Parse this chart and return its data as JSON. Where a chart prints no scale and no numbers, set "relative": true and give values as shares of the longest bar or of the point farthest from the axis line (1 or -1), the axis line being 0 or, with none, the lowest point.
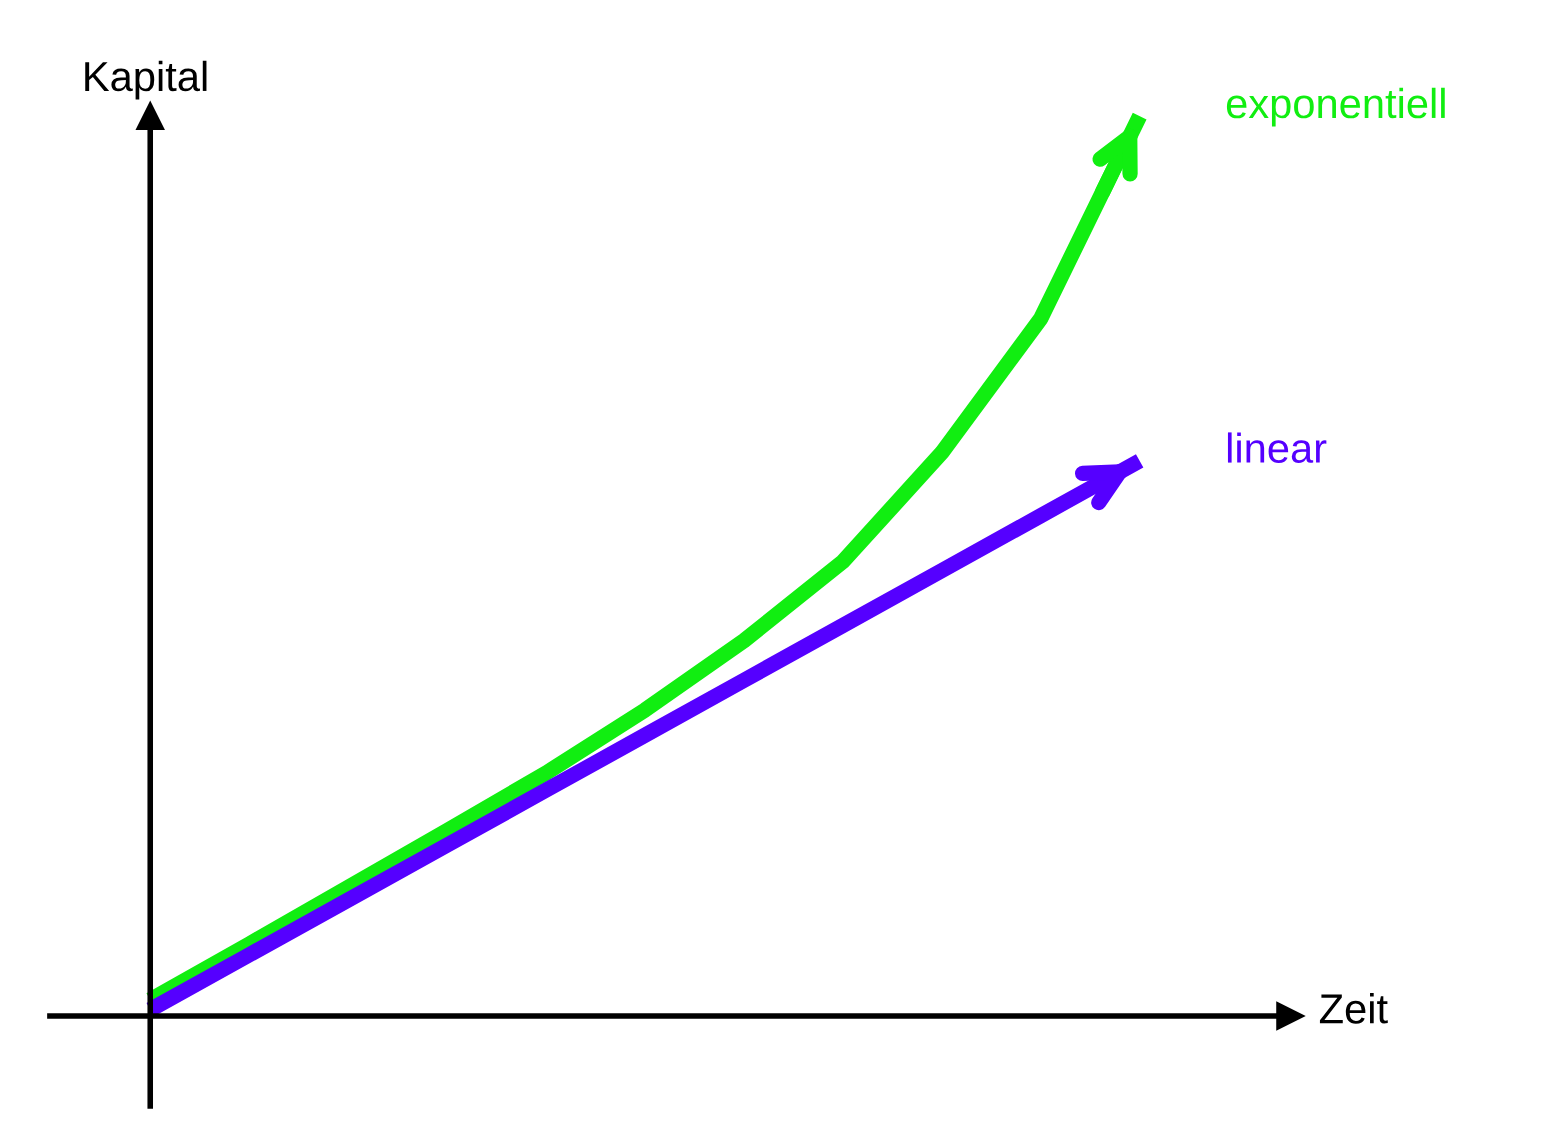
{
  "chart_data": {
    "type": "line",
    "relative": true,
    "xlabel": "Zeit",
    "ylabel": "Kapital",
    "legend": false,
    "marker": "none",
    "line_style": "solid",
    "categories": [
      null,
      null,
      null,
      null,
      null,
      null,
      null,
      null,
      null,
      null,
      null
    ],
    "series": [
      {
        "name": "exponentiell",
        "color": "#11ee11",
        "values": [
          0.018,
          0.08,
          0.143,
          0.206,
          0.27,
          0.34,
          0.417,
          0.505,
          0.626,
          0.775,
          1.0
        ]
      },
      {
        "name": "linear",
        "color": "#5500ff",
        "values": [
          0.007,
          0.068,
          0.129,
          0.19,
          0.251,
          0.312,
          0.373,
          0.434,
          0.495,
          0.556,
          0.617
        ]
      }
    ]
  }
}
